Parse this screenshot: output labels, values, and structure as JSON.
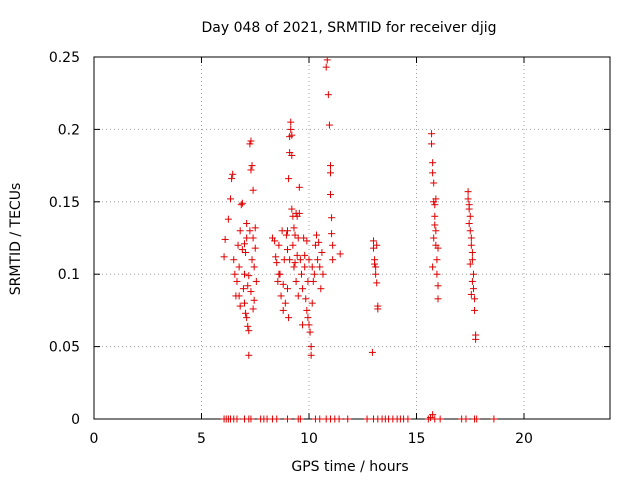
{
  "chart_data": {
    "type": "scatter",
    "title": "Day 048 of 2021, SRMTID for receiver djig",
    "xlabel": "GPS time / hours",
    "ylabel": "SRMTID / TECUs",
    "xlim": [
      0,
      24
    ],
    "ylim": [
      0,
      0.25
    ],
    "xticks": [
      0,
      5,
      10,
      15,
      20
    ],
    "yticks": [
      0,
      0.05,
      0.1,
      0.15,
      0.2,
      0.25
    ],
    "xtick_labels": [
      "0",
      "5",
      "10",
      "15",
      "20"
    ],
    "ytick_labels": [
      "0",
      "0.05",
      "0.1",
      "0.15",
      "0.2",
      "0.25"
    ],
    "grid": true,
    "marker": "+",
    "color": "#e00000",
    "series": [
      {
        "name": "SRMTID",
        "points": [
          [
            6.05,
            0.0
          ],
          [
            6.15,
            0.0
          ],
          [
            6.25,
            0.0
          ],
          [
            6.35,
            0.0
          ],
          [
            6.5,
            0.0
          ],
          [
            6.65,
            0.0
          ],
          [
            7.0,
            0.0
          ],
          [
            7.2,
            0.0
          ],
          [
            7.3,
            0.0
          ],
          [
            7.75,
            0.0
          ],
          [
            7.9,
            0.0
          ],
          [
            8.05,
            0.0
          ],
          [
            8.3,
            0.0
          ],
          [
            8.5,
            0.0
          ],
          [
            9.0,
            0.0
          ],
          [
            9.5,
            0.0
          ],
          [
            9.6,
            0.0
          ],
          [
            10.3,
            0.0
          ],
          [
            10.5,
            0.0
          ],
          [
            10.8,
            0.0
          ],
          [
            11.0,
            0.0
          ],
          [
            11.2,
            0.0
          ],
          [
            11.4,
            0.0
          ],
          [
            11.8,
            0.0
          ],
          [
            12.7,
            0.0
          ],
          [
            13.0,
            0.0
          ],
          [
            13.2,
            0.0
          ],
          [
            13.4,
            0.0
          ],
          [
            13.55,
            0.0
          ],
          [
            13.7,
            0.0
          ],
          [
            13.9,
            0.0
          ],
          [
            14.1,
            0.0
          ],
          [
            14.25,
            0.0
          ],
          [
            14.4,
            0.0
          ],
          [
            14.6,
            0.0
          ],
          [
            15.55,
            0.0
          ],
          [
            15.65,
            0.001
          ],
          [
            15.75,
            0.003
          ],
          [
            15.85,
            0.0
          ],
          [
            16.1,
            0.0
          ],
          [
            17.1,
            0.0
          ],
          [
            17.3,
            0.0
          ],
          [
            17.7,
            0.0
          ],
          [
            17.8,
            0.0
          ],
          [
            18.6,
            0.0
          ],
          [
            6.05,
            0.112
          ],
          [
            6.1,
            0.124
          ],
          [
            6.25,
            0.138
          ],
          [
            6.35,
            0.152
          ],
          [
            6.4,
            0.166
          ],
          [
            6.45,
            0.169
          ],
          [
            6.5,
            0.11
          ],
          [
            6.55,
            0.1
          ],
          [
            6.6,
            0.085
          ],
          [
            6.65,
            0.095
          ],
          [
            6.7,
            0.12
          ],
          [
            6.75,
            0.105
          ],
          [
            6.8,
            0.13
          ],
          [
            6.85,
            0.148
          ],
          [
            6.9,
            0.149
          ],
          [
            6.95,
            0.09
          ],
          [
            7.0,
            0.1
          ],
          [
            7.0,
            0.08
          ],
          [
            7.05,
            0.073
          ],
          [
            7.05,
            0.115
          ],
          [
            7.1,
            0.07
          ],
          [
            7.1,
            0.125
          ],
          [
            7.15,
            0.092
          ],
          [
            7.15,
            0.064
          ],
          [
            7.2,
            0.061
          ],
          [
            7.2,
            0.044
          ],
          [
            7.25,
            0.19
          ],
          [
            7.25,
            0.13
          ],
          [
            7.3,
            0.192
          ],
          [
            7.3,
            0.172
          ],
          [
            7.35,
            0.175
          ],
          [
            7.35,
            0.11
          ],
          [
            7.4,
            0.158
          ],
          [
            7.4,
            0.125
          ],
          [
            7.45,
            0.105
          ],
          [
            7.45,
            0.082
          ],
          [
            7.5,
            0.132
          ],
          [
            7.5,
            0.118
          ],
          [
            7.55,
            0.095
          ],
          [
            7.0,
            0.121
          ],
          [
            7.1,
            0.135
          ],
          [
            6.9,
            0.117
          ],
          [
            6.8,
            0.078
          ],
          [
            6.75,
            0.085
          ],
          [
            7.2,
            0.099
          ],
          [
            7.3,
            0.088
          ],
          [
            7.4,
            0.076
          ],
          [
            8.3,
            0.125
          ],
          [
            8.4,
            0.123
          ],
          [
            8.45,
            0.112
          ],
          [
            8.5,
            0.108
          ],
          [
            8.55,
            0.095
          ],
          [
            8.6,
            0.12
          ],
          [
            8.65,
            0.1
          ],
          [
            8.7,
            0.085
          ],
          [
            8.75,
            0.13
          ],
          [
            8.8,
            0.075
          ],
          [
            8.85,
            0.11
          ],
          [
            8.9,
            0.08
          ],
          [
            8.95,
            0.127
          ],
          [
            9.0,
            0.13
          ],
          [
            9.0,
            0.09
          ],
          [
            9.05,
            0.166
          ],
          [
            9.05,
            0.07
          ],
          [
            9.1,
            0.184
          ],
          [
            9.1,
            0.11
          ],
          [
            9.1,
            0.195
          ],
          [
            9.15,
            0.205
          ],
          [
            9.15,
            0.2
          ],
          [
            9.2,
            0.196
          ],
          [
            9.2,
            0.182
          ],
          [
            9.2,
            0.145
          ],
          [
            9.25,
            0.14
          ],
          [
            9.25,
            0.12
          ],
          [
            9.3,
            0.105
          ],
          [
            9.3,
            0.132
          ],
          [
            9.35,
            0.127
          ],
          [
            9.35,
            0.108
          ],
          [
            9.4,
            0.142
          ],
          [
            9.4,
            0.095
          ],
          [
            9.45,
            0.113
          ],
          [
            9.45,
            0.14
          ],
          [
            9.5,
            0.085
          ],
          [
            9.5,
            0.125
          ],
          [
            9.55,
            0.142
          ],
          [
            9.55,
            0.16
          ],
          [
            9.6,
            0.11
          ],
          [
            9.65,
            0.1
          ],
          [
            9.7,
            0.09
          ],
          [
            9.75,
            0.125
          ],
          [
            9.8,
            0.105
          ],
          [
            9.85,
            0.083
          ],
          [
            9.9,
            0.123
          ],
          [
            9.9,
            0.075
          ],
          [
            9.95,
            0.07
          ],
          [
            10.0,
            0.065
          ],
          [
            10.0,
            0.11
          ],
          [
            10.05,
            0.06
          ],
          [
            10.1,
            0.05
          ],
          [
            10.1,
            0.044
          ],
          [
            10.15,
            0.08
          ],
          [
            10.2,
            0.095
          ],
          [
            10.25,
            0.1
          ],
          [
            10.3,
            0.12
          ],
          [
            10.35,
            0.127
          ],
          [
            10.4,
            0.11
          ],
          [
            10.45,
            0.122
          ],
          [
            10.5,
            0.105
          ],
          [
            10.55,
            0.09
          ],
          [
            10.6,
            0.115
          ],
          [
            10.65,
            0.1
          ],
          [
            9.0,
            0.117
          ],
          [
            8.8,
            0.093
          ],
          [
            8.6,
            0.1
          ],
          [
            9.7,
            0.065
          ],
          [
            9.8,
            0.113
          ],
          [
            9.95,
            0.095
          ],
          [
            10.15,
            0.105
          ],
          [
            10.8,
            0.243
          ],
          [
            10.85,
            0.248
          ],
          [
            10.9,
            0.224
          ],
          [
            10.95,
            0.203
          ],
          [
            11.0,
            0.175
          ],
          [
            11.0,
            0.17
          ],
          [
            11.0,
            0.155
          ],
          [
            11.05,
            0.139
          ],
          [
            11.05,
            0.128
          ],
          [
            11.1,
            0.12
          ],
          [
            11.1,
            0.11
          ],
          [
            11.45,
            0.114
          ],
          [
            12.95,
            0.046
          ],
          [
            13.0,
            0.123
          ],
          [
            13.0,
            0.118
          ],
          [
            13.05,
            0.11
          ],
          [
            13.05,
            0.107
          ],
          [
            13.1,
            0.105
          ],
          [
            13.1,
            0.1
          ],
          [
            13.15,
            0.094
          ],
          [
            13.15,
            0.12
          ],
          [
            13.2,
            0.078
          ],
          [
            13.2,
            0.076
          ],
          [
            15.7,
            0.197
          ],
          [
            15.7,
            0.19
          ],
          [
            15.75,
            0.177
          ],
          [
            15.75,
            0.17
          ],
          [
            15.8,
            0.163
          ],
          [
            15.8,
            0.15
          ],
          [
            15.85,
            0.148
          ],
          [
            15.85,
            0.14
          ],
          [
            15.9,
            0.13
          ],
          [
            15.9,
            0.12
          ],
          [
            15.95,
            0.1
          ],
          [
            15.95,
            0.11
          ],
          [
            16.0,
            0.092
          ],
          [
            16.0,
            0.083
          ],
          [
            15.9,
            0.152
          ],
          [
            15.85,
            0.134
          ],
          [
            16.0,
            0.118
          ],
          [
            15.75,
            0.105
          ],
          [
            15.8,
            0.125
          ],
          [
            17.4,
            0.157
          ],
          [
            17.4,
            0.152
          ],
          [
            17.45,
            0.148
          ],
          [
            17.45,
            0.145
          ],
          [
            17.5,
            0.14
          ],
          [
            17.5,
            0.13
          ],
          [
            17.55,
            0.125
          ],
          [
            17.55,
            0.12
          ],
          [
            17.6,
            0.115
          ],
          [
            17.6,
            0.11
          ],
          [
            17.65,
            0.1
          ],
          [
            17.65,
            0.09
          ],
          [
            17.7,
            0.083
          ],
          [
            17.7,
            0.075
          ],
          [
            17.75,
            0.058
          ],
          [
            17.75,
            0.055
          ],
          [
            17.6,
            0.095
          ],
          [
            17.5,
            0.107
          ],
          [
            17.45,
            0.135
          ],
          [
            17.55,
            0.086
          ]
        ]
      }
    ]
  }
}
